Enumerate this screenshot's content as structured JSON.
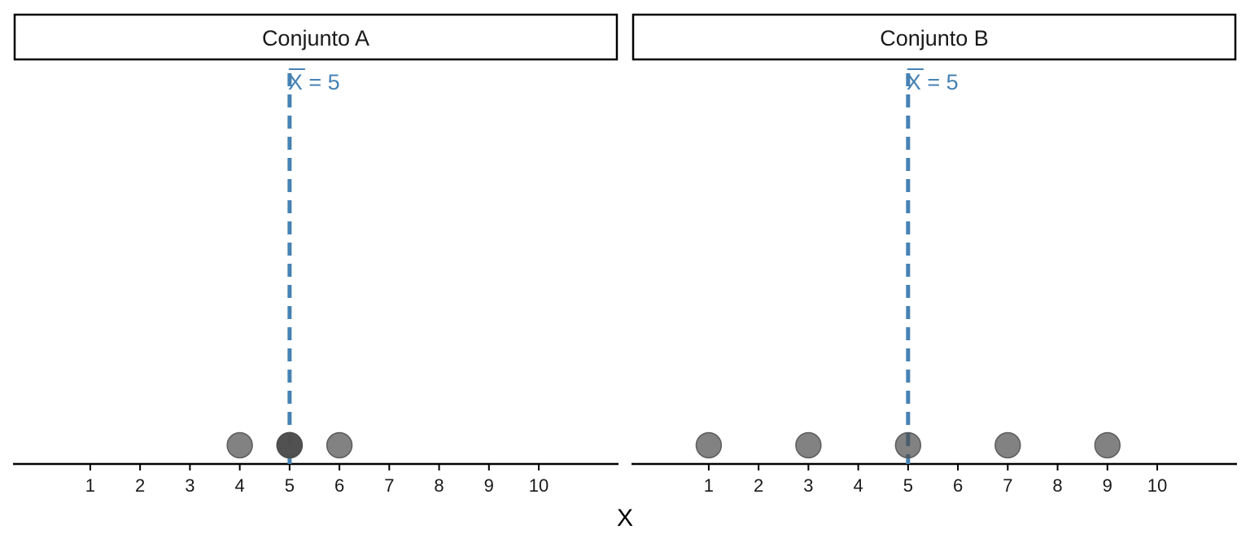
{
  "chart_data": {
    "type": "scatter",
    "xlabel": "X",
    "x_ticks": [
      "1",
      "2",
      "3",
      "4",
      "5",
      "6",
      "7",
      "8",
      "9",
      "10"
    ],
    "xlim": [
      -0.55,
      11.6
    ],
    "colors": {
      "point": "#4d4d4d",
      "mean_line": "#4682b4",
      "axis": "#000000"
    },
    "panels": [
      {
        "strip_label": "Conjunto A",
        "x": [
          4,
          5,
          5,
          5,
          6
        ],
        "mean": 5,
        "mean_symbol": "X",
        "mean_text": " = 5"
      },
      {
        "strip_label": "Conjunto B",
        "x": [
          1,
          3,
          5,
          7,
          9
        ],
        "mean": 5,
        "mean_symbol": "X",
        "mean_text": " = 5"
      }
    ]
  }
}
